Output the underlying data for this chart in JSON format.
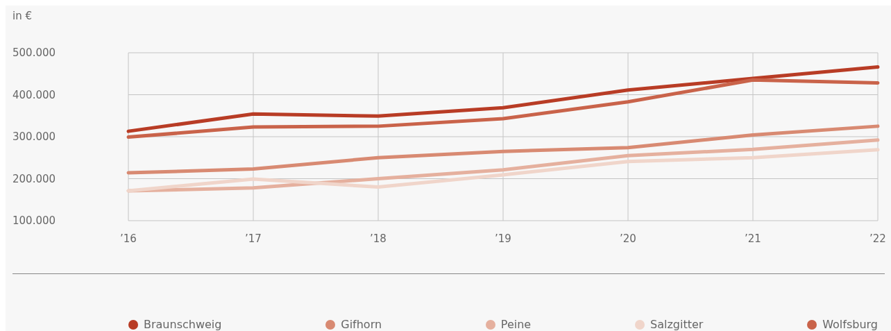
{
  "chart_data": {
    "type": "line",
    "ylabel": "in €",
    "categories": [
      "’16",
      "’17",
      "’18",
      "’19",
      "’20",
      "’21",
      "’22"
    ],
    "series": [
      {
        "name": "Braunschweig",
        "color": "#b83c25",
        "values": [
          313000,
          354000,
          349000,
          369000,
          411000,
          439000,
          466000
        ]
      },
      {
        "name": "Gifhorn",
        "color": "#d88a72",
        "values": [
          214000,
          223000,
          250000,
          265000,
          274000,
          304000,
          325000
        ]
      },
      {
        "name": "Peine",
        "color": "#e5b09e",
        "values": [
          171000,
          178000,
          200000,
          221000,
          255000,
          270000,
          292000
        ]
      },
      {
        "name": "Salzgitter",
        "color": "#f0d5ca",
        "values": [
          171000,
          199000,
          180000,
          209000,
          241000,
          250000,
          269000
        ]
      },
      {
        "name": "Wolfsburg",
        "color": "#c9634a",
        "values": [
          299000,
          323000,
          325000,
          343000,
          383000,
          435000,
          428000
        ]
      }
    ],
    "ylim": [
      100000,
      500000
    ],
    "yticks": [
      {
        "value": 100000,
        "label": "100.000"
      },
      {
        "value": 200000,
        "label": "200.000"
      },
      {
        "value": 300000,
        "label": "300.000"
      },
      {
        "value": 400000,
        "label": "400.000"
      },
      {
        "value": 500000,
        "label": "500.000"
      }
    ],
    "grid": true,
    "legend": "bottom",
    "marker": "none",
    "line_style": "solid"
  }
}
